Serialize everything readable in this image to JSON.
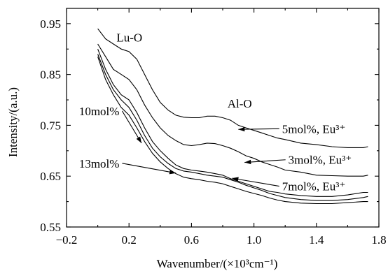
{
  "chart_data": {
    "type": "line",
    "xlabel": "Wavenumber/(×10³cm⁻¹)",
    "ylabel": "Intensity/(a.u.)",
    "xlim": [
      -0.2,
      1.8
    ],
    "ylim": [
      0.55,
      0.98
    ],
    "xticks": [
      -0.2,
      0.2,
      0.6,
      1.0,
      1.4,
      1.8
    ],
    "xtick_labels": [
      "−0.2",
      "0.2",
      "0.6",
      "1.0",
      "1.4",
      "1.8"
    ],
    "yticks": [
      0.55,
      0.65,
      0.75,
      0.85,
      0.95
    ],
    "ytick_labels": [
      "0.55",
      "0.65",
      "0.75",
      "0.85",
      "0.95"
    ],
    "grid": false,
    "series": [
      {
        "name": "5mol%, Eu³⁺",
        "x": [
          0.0,
          0.05,
          0.1,
          0.15,
          0.2,
          0.25,
          0.3,
          0.35,
          0.4,
          0.45,
          0.5,
          0.55,
          0.6,
          0.65,
          0.7,
          0.75,
          0.8,
          0.85,
          0.9,
          0.95,
          1.0,
          1.05,
          1.1,
          1.15,
          1.2,
          1.3,
          1.4,
          1.5,
          1.6,
          1.7,
          1.73
        ],
        "y": [
          0.94,
          0.92,
          0.91,
          0.9,
          0.895,
          0.88,
          0.85,
          0.82,
          0.795,
          0.78,
          0.77,
          0.766,
          0.765,
          0.765,
          0.768,
          0.768,
          0.765,
          0.76,
          0.75,
          0.745,
          0.74,
          0.735,
          0.73,
          0.725,
          0.722,
          0.715,
          0.712,
          0.708,
          0.706,
          0.706,
          0.708
        ]
      },
      {
        "name": "3mol%, Eu³⁺",
        "x": [
          0.0,
          0.05,
          0.1,
          0.15,
          0.2,
          0.25,
          0.3,
          0.35,
          0.4,
          0.45,
          0.5,
          0.55,
          0.6,
          0.65,
          0.7,
          0.75,
          0.8,
          0.85,
          0.9,
          0.95,
          1.0,
          1.05,
          1.1,
          1.15,
          1.2,
          1.3,
          1.4,
          1.5,
          1.6,
          1.7,
          1.73
        ],
        "y": [
          0.91,
          0.885,
          0.86,
          0.85,
          0.84,
          0.82,
          0.79,
          0.765,
          0.745,
          0.73,
          0.72,
          0.712,
          0.71,
          0.712,
          0.715,
          0.714,
          0.71,
          0.705,
          0.698,
          0.69,
          0.685,
          0.678,
          0.673,
          0.668,
          0.662,
          0.658,
          0.652,
          0.651,
          0.65,
          0.65,
          0.652
        ]
      },
      {
        "name": "7mol%, Eu³⁺",
        "x": [
          0.0,
          0.05,
          0.1,
          0.15,
          0.2,
          0.25,
          0.3,
          0.35,
          0.4,
          0.45,
          0.5,
          0.55,
          0.6,
          0.65,
          0.7,
          0.75,
          0.8,
          0.85,
          0.9,
          0.95,
          1.0,
          1.05,
          1.1,
          1.15,
          1.2,
          1.3,
          1.4,
          1.5,
          1.6,
          1.7,
          1.73
        ],
        "y": [
          0.9,
          0.86,
          0.83,
          0.81,
          0.8,
          0.775,
          0.745,
          0.718,
          0.7,
          0.685,
          0.672,
          0.665,
          0.662,
          0.66,
          0.658,
          0.655,
          0.652,
          0.645,
          0.64,
          0.635,
          0.63,
          0.625,
          0.62,
          0.618,
          0.615,
          0.612,
          0.61,
          0.61,
          0.613,
          0.618,
          0.618
        ]
      },
      {
        "name": "10mol%",
        "x": [
          0.0,
          0.05,
          0.1,
          0.15,
          0.2,
          0.25,
          0.3,
          0.35,
          0.4,
          0.45,
          0.5,
          0.55,
          0.6,
          0.65,
          0.7,
          0.75,
          0.8,
          0.85,
          0.9,
          0.95,
          1.0,
          1.05,
          1.1,
          1.15,
          1.2,
          1.3,
          1.4,
          1.5,
          1.6,
          1.7,
          1.73
        ],
        "y": [
          0.89,
          0.85,
          0.82,
          0.8,
          0.785,
          0.76,
          0.73,
          0.705,
          0.688,
          0.675,
          0.665,
          0.66,
          0.658,
          0.655,
          0.652,
          0.65,
          0.648,
          0.643,
          0.638,
          0.632,
          0.627,
          0.622,
          0.616,
          0.612,
          0.608,
          0.604,
          0.602,
          0.602,
          0.604,
          0.608,
          0.61
        ]
      },
      {
        "name": "13mol%",
        "x": [
          0.0,
          0.05,
          0.1,
          0.15,
          0.2,
          0.25,
          0.3,
          0.35,
          0.4,
          0.45,
          0.5,
          0.55,
          0.6,
          0.65,
          0.7,
          0.75,
          0.8,
          0.85,
          0.9,
          0.95,
          1.0,
          1.05,
          1.1,
          1.15,
          1.2,
          1.3,
          1.4,
          1.5,
          1.6,
          1.7,
          1.73
        ],
        "y": [
          0.885,
          0.84,
          0.81,
          0.785,
          0.77,
          0.745,
          0.718,
          0.695,
          0.678,
          0.665,
          0.655,
          0.648,
          0.645,
          0.643,
          0.64,
          0.638,
          0.635,
          0.63,
          0.625,
          0.62,
          0.616,
          0.612,
          0.607,
          0.603,
          0.6,
          0.597,
          0.596,
          0.596,
          0.598,
          0.6,
          0.6
        ]
      }
    ],
    "annotations": [
      {
        "name": "label-lu-o",
        "text": "Lu-O",
        "x": 0.12,
        "y": 0.915
      },
      {
        "name": "label-al-o",
        "text": "Al-O",
        "x": 0.83,
        "y": 0.785
      },
      {
        "name": "label-5mol",
        "text": "5mol%, Eu³⁺",
        "x": 1.18,
        "y": 0.735,
        "arrow_to": [
          0.9,
          0.742
        ]
      },
      {
        "name": "label-3mol",
        "text": "3mol%, Eu³⁺",
        "x": 1.22,
        "y": 0.674,
        "arrow_to": [
          0.94,
          0.677
        ]
      },
      {
        "name": "label-7mol",
        "text": "7mol%, Eu³⁺",
        "x": 1.18,
        "y": 0.622,
        "arrow_to": [
          0.86,
          0.646
        ]
      },
      {
        "name": "label-10mol",
        "text": "10mol%",
        "x": -0.12,
        "y": 0.77,
        "arrow_to": [
          0.28,
          0.715
        ]
      },
      {
        "name": "label-13mol",
        "text": "13mol%",
        "x": -0.12,
        "y": 0.667,
        "arrow_to": [
          0.5,
          0.656
        ]
      }
    ]
  }
}
